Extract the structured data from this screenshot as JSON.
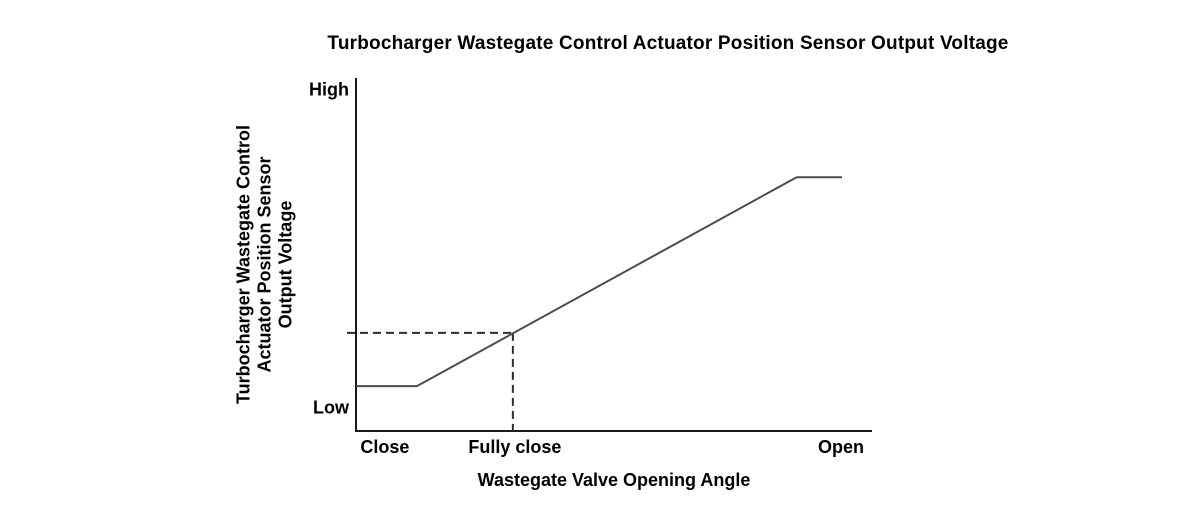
{
  "chart_data": {
    "type": "line",
    "title": "Turbocharger Wastegate Control Actuator Position Sensor Output Voltage",
    "xlabel": "Wastegate Valve Opening Angle",
    "ylabel": "Turbocharger Wastegate Control Actuator Position Sensor Output Voltage",
    "ylabel_lines": [
      "Turbocharger Wastegate Control",
      "Actuator Position Sensor",
      "Output Voltage"
    ],
    "x_tick_labels": [
      {
        "label": "Close",
        "x": 0.056
      },
      {
        "label": "Fully close",
        "x": 0.308
      },
      {
        "label": "Open",
        "x": 0.94
      }
    ],
    "y_tick_labels": [
      {
        "label": "High",
        "y": 0.965
      },
      {
        "label": "Low",
        "y": 0.065
      }
    ],
    "xlim": [
      0,
      1
    ],
    "ylim": [
      0,
      1
    ],
    "grid": false,
    "legend": false,
    "series": [
      {
        "name": "sensor-output-voltage",
        "points": [
          {
            "x": 0.0,
            "y": 0.127
          },
          {
            "x": 0.118,
            "y": 0.127
          },
          {
            "x": 0.854,
            "y": 0.719
          },
          {
            "x": 0.942,
            "y": 0.719
          }
        ]
      }
    ],
    "guide_lines": {
      "x": 0.304,
      "y": 0.278,
      "style": "dashed"
    },
    "colors": {
      "axis": "#1a1a1a",
      "curve": "#4f4b49",
      "dash": "#2e2e2e",
      "text": "#000000",
      "background": "#ffffff"
    }
  }
}
